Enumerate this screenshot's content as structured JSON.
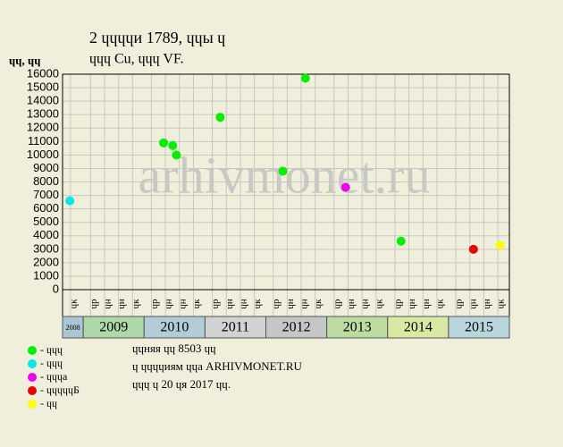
{
  "chart_data": {
    "type": "scatter",
    "title": "2 ɥɥɥɥи 1789, ɥɥы ɥ",
    "subtitle": "ɥɥɥ Cu, ɥɥɥ VF.",
    "y_label": "ɥɥ, ɥɥ",
    "watermark": "arhivmonet.ru",
    "ylim": [
      0,
      16000
    ],
    "yticks": [
      0,
      1000,
      2000,
      3000,
      4000,
      5000,
      6000,
      7000,
      8000,
      9000,
      10000,
      11000,
      12000,
      13000,
      14000,
      15000,
      16000
    ],
    "xlim": [
      2008.66,
      2016
    ],
    "xticks": [
      {
        "value": 2008.79,
        "label": "ɥк"
      },
      {
        "value": 2009.12,
        "label": "ɥр"
      },
      {
        "value": 2009.35,
        "label": "ɥн"
      },
      {
        "value": 2009.58,
        "label": "ɥн"
      },
      {
        "value": 2009.81,
        "label": "ɥк"
      },
      {
        "value": 2010.12,
        "label": "ɥр"
      },
      {
        "value": 2010.35,
        "label": "ɥн"
      },
      {
        "value": 2010.58,
        "label": "ɥн"
      },
      {
        "value": 2010.81,
        "label": "ɥк"
      },
      {
        "value": 2011.12,
        "label": "ɥр"
      },
      {
        "value": 2011.35,
        "label": "ɥн"
      },
      {
        "value": 2011.58,
        "label": "ɥн"
      },
      {
        "value": 2011.81,
        "label": "ɥк"
      },
      {
        "value": 2012.12,
        "label": "ɥр"
      },
      {
        "value": 2012.35,
        "label": "ɥн"
      },
      {
        "value": 2012.58,
        "label": "ɥн"
      },
      {
        "value": 2012.81,
        "label": "ɥк"
      },
      {
        "value": 2013.12,
        "label": "ɥр"
      },
      {
        "value": 2013.35,
        "label": "ɥн"
      },
      {
        "value": 2013.58,
        "label": "ɥн"
      },
      {
        "value": 2013.81,
        "label": "ɥк"
      },
      {
        "value": 2014.12,
        "label": "ɥр"
      },
      {
        "value": 2014.35,
        "label": "ɥн"
      },
      {
        "value": 2014.58,
        "label": "ɥн"
      },
      {
        "value": 2014.81,
        "label": "ɥк"
      },
      {
        "value": 2015.12,
        "label": "ɥр"
      },
      {
        "value": 2015.35,
        "label": "ɥн"
      },
      {
        "value": 2015.58,
        "label": "ɥн"
      },
      {
        "value": 2015.81,
        "label": "ɥк"
      }
    ],
    "years": [
      {
        "value": 2008,
        "label": "2008",
        "color": "#a9c6d2"
      },
      {
        "value": 2009,
        "label": "2009",
        "color": "#aed8a8"
      },
      {
        "value": 2010,
        "label": "2010",
        "color": "#b3cdd8"
      },
      {
        "value": 2011,
        "label": "2011",
        "color": "#d2d2d2"
      },
      {
        "value": 2012,
        "label": "2012",
        "color": "#c6c6c6"
      },
      {
        "value": 2013,
        "label": "2013",
        "color": "#bcdca2"
      },
      {
        "value": 2014,
        "label": "2014",
        "color": "#d9e8a2"
      },
      {
        "value": 2015,
        "label": "2015",
        "color": "#b9d5dc"
      }
    ],
    "series": [
      {
        "name": "- ɥɥɥ",
        "color": "#00ee00",
        "x": [
          2010.32,
          2010.47,
          2010.53,
          2011.25,
          2012.28,
          2012.65,
          2014.22
        ],
        "values": [
          10900,
          10700,
          10000,
          12800,
          8800,
          15700,
          3600
        ]
      },
      {
        "name": "- ɥɥɥ",
        "color": "#00e8e8",
        "x": [
          2008.78
        ],
        "values": [
          6600
        ]
      },
      {
        "name": "- ɥɥɥа",
        "color": "#ee00ee",
        "x": [
          2013.31
        ],
        "values": [
          7600
        ]
      },
      {
        "name": "- ɥɥɥɥɥБ",
        "color": "#ee0000",
        "x": [
          2015.41
        ],
        "values": [
          3000
        ]
      },
      {
        "name": "- ɥɥ",
        "color": "#ffff00",
        "x": [
          2015.85
        ],
        "values": [
          3300
        ]
      }
    ],
    "notes": [
      "ɥɥняя ɥɥ 8503 ɥɥ",
      "ɥ ɥɥɥɥиям ɥɥа ARHIVMONET.RU",
      "ɥɥɥ ɥ 20 ɥя 2017 ɥɥ."
    ]
  }
}
